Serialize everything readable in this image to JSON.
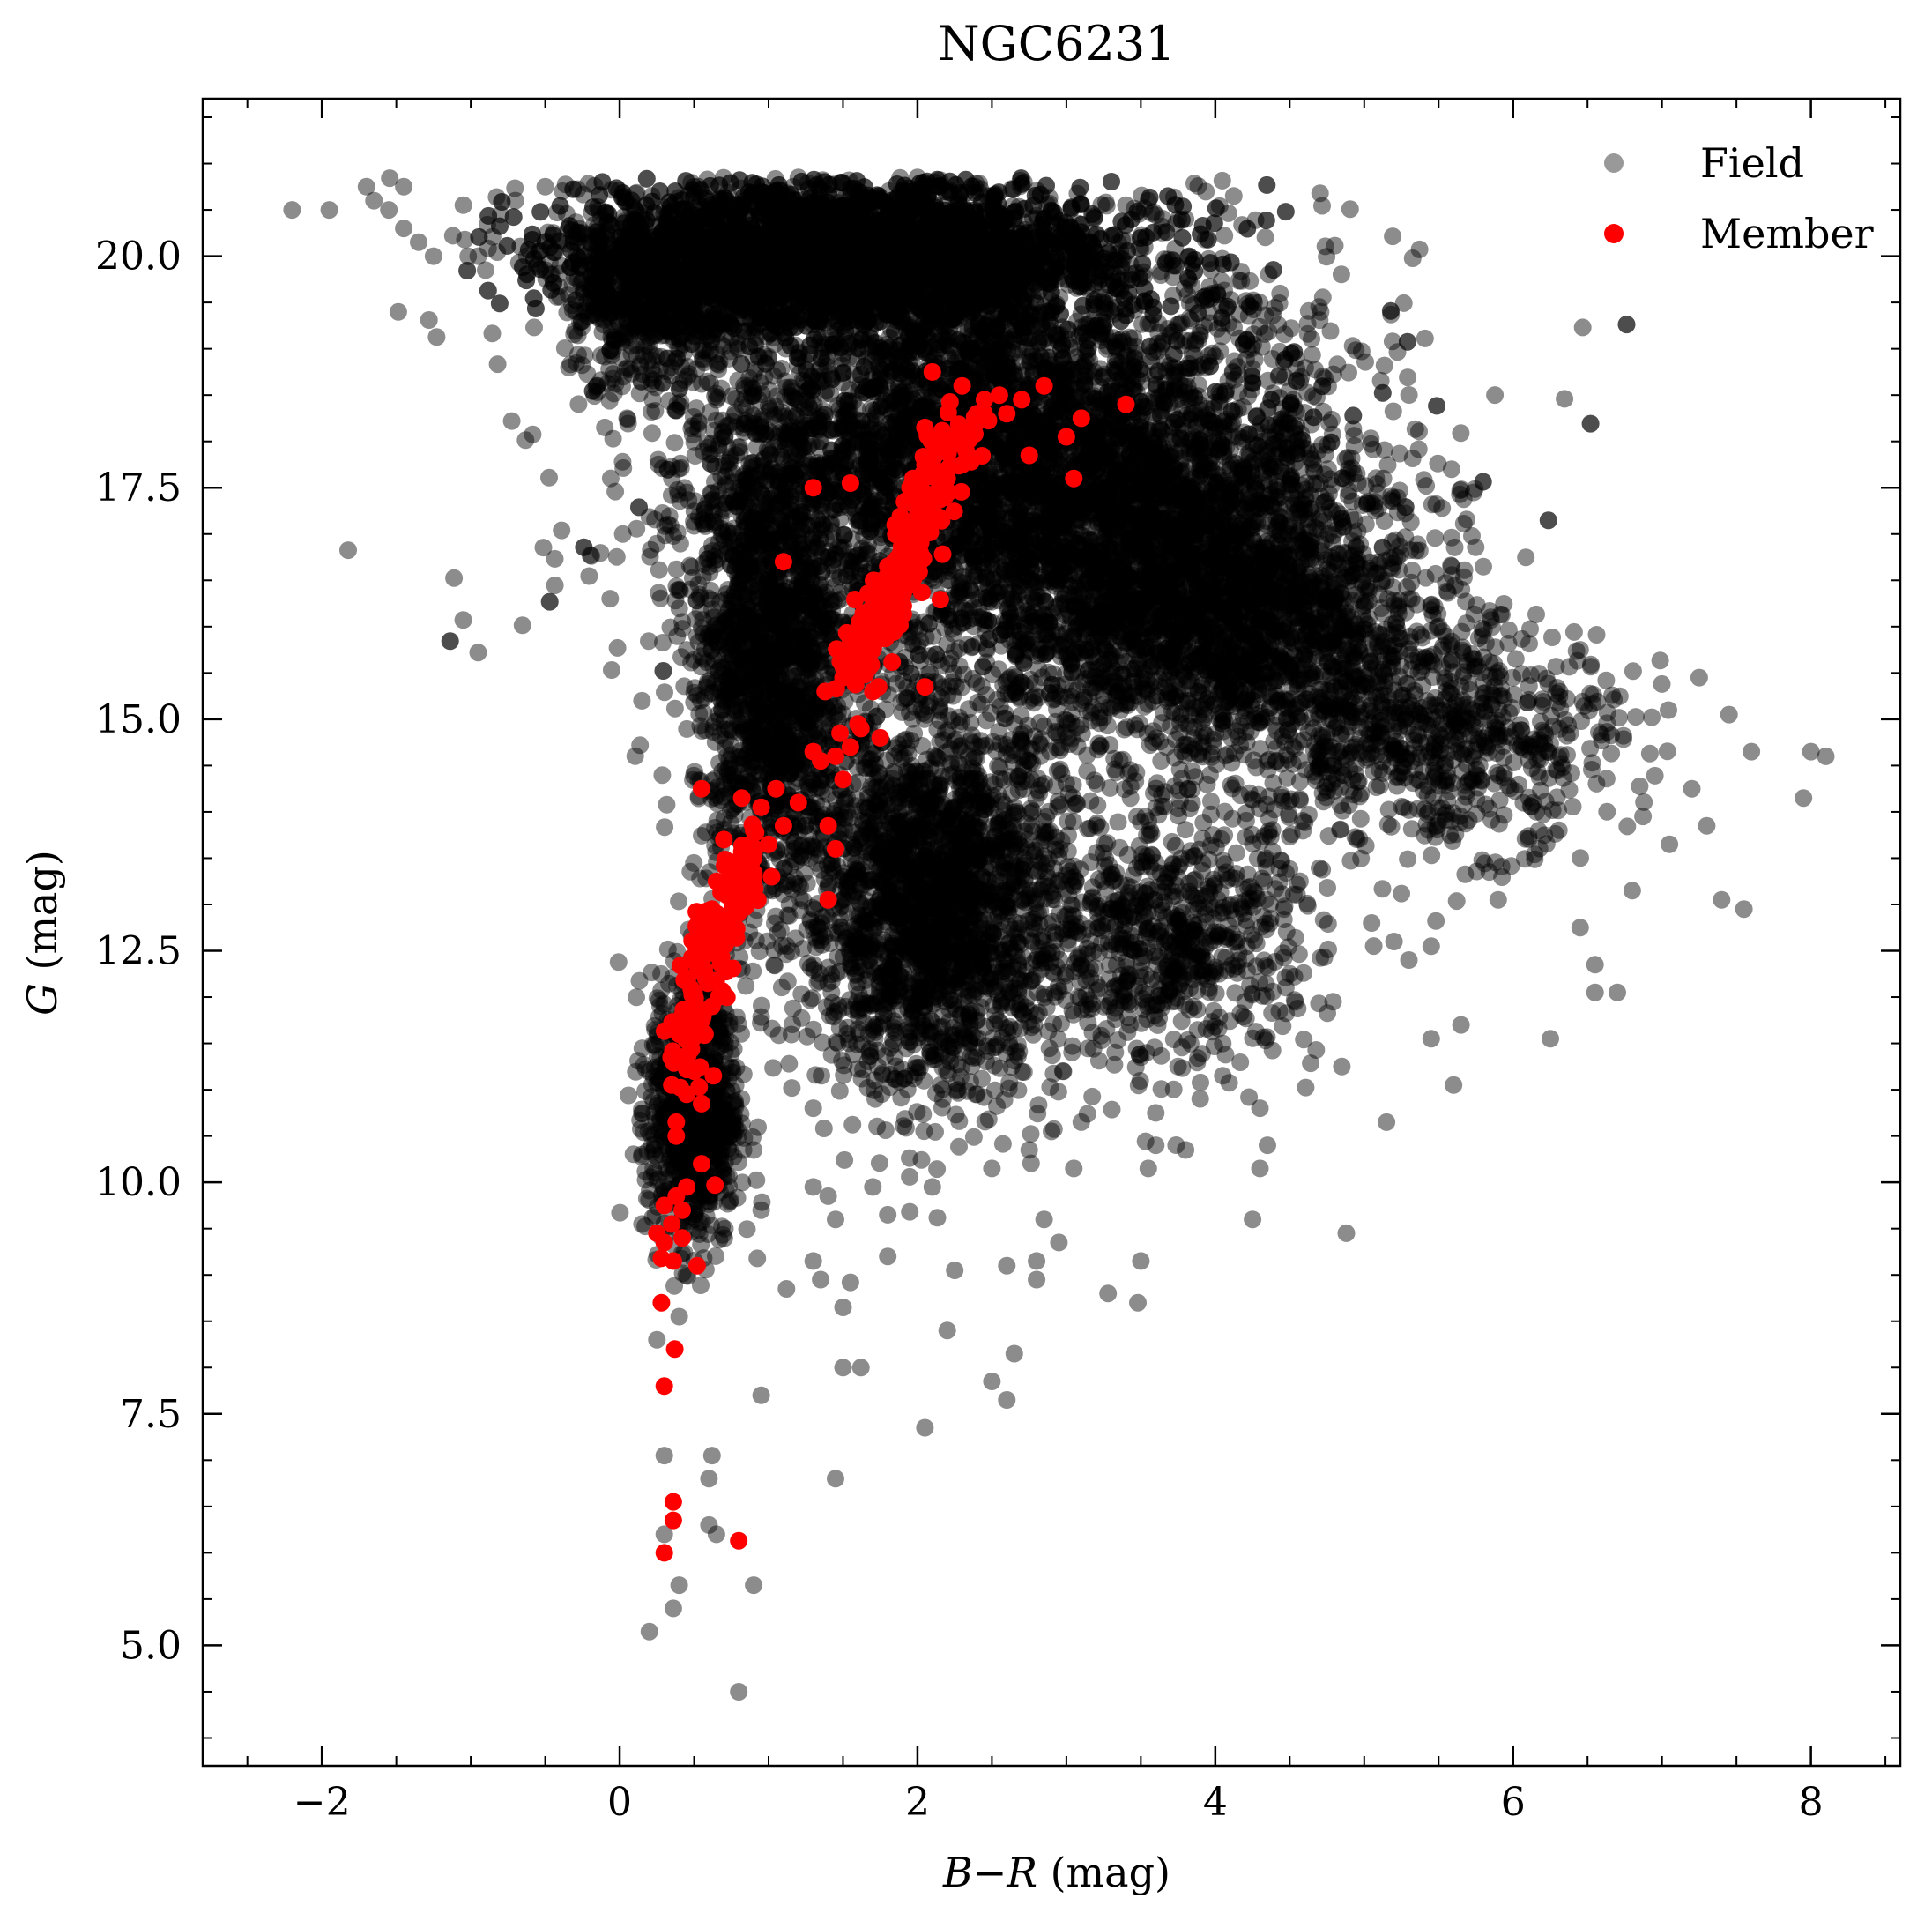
{
  "chart_data": {
    "type": "scatter",
    "title": "NGC6231",
    "xlabel": "B − R (mag)",
    "xlabel_parts": [
      "B",
      "−",
      "R",
      " (mag)"
    ],
    "ylabel": "G (mag)",
    "ylabel_parts": [
      "G",
      " (mag)"
    ],
    "xlim": [
      -2.8,
      8.6
    ],
    "ylim": [
      21.7,
      3.7
    ],
    "y_inverted": true,
    "x_ticks": [
      -2,
      0,
      2,
      4,
      6,
      8
    ],
    "x_tick_labels": [
      "−2",
      "0",
      "2",
      "4",
      "6",
      "8"
    ],
    "y_ticks": [
      5.0,
      7.5,
      10.0,
      12.5,
      15.0,
      17.5,
      20.0
    ],
    "y_tick_labels": [
      "5.0",
      "7.5",
      "10.0",
      "12.5",
      "15.0",
      "17.5",
      "20.0"
    ],
    "grid": false,
    "legend_position": "top-right",
    "series": [
      {
        "name": "Field",
        "color": "#555555",
        "alpha": 0.45,
        "points": [
          [
            0.8,
            4.5
          ],
          [
            0.2,
            5.15
          ],
          [
            0.36,
            5.4
          ],
          [
            0.4,
            5.65
          ],
          [
            0.9,
            5.65
          ],
          [
            0.3,
            6.2
          ],
          [
            0.65,
            6.2
          ],
          [
            0.6,
            6.3
          ],
          [
            0.6,
            6.8
          ],
          [
            0.62,
            7.05
          ],
          [
            0.3,
            7.05
          ],
          [
            1.45,
            6.8
          ],
          [
            2.05,
            7.35
          ],
          [
            0.95,
            7.7
          ],
          [
            2.6,
            7.65
          ],
          [
            2.5,
            7.85
          ],
          [
            1.5,
            8.0
          ],
          [
            1.62,
            8.0
          ],
          [
            2.65,
            8.15
          ],
          [
            0.25,
            8.3
          ],
          [
            2.2,
            8.4
          ],
          [
            0.4,
            8.55
          ],
          [
            1.5,
            8.65
          ],
          [
            1.12,
            8.85
          ],
          [
            1.55,
            8.92
          ],
          [
            1.35,
            8.95
          ],
          [
            2.8,
            8.95
          ],
          [
            3.28,
            8.8
          ],
          [
            3.48,
            8.7
          ],
          [
            2.8,
            9.15
          ],
          [
            1.3,
            9.15
          ],
          [
            3.5,
            9.15
          ],
          [
            2.25,
            9.05
          ],
          [
            2.6,
            9.1
          ],
          [
            1.8,
            9.2
          ],
          [
            2.95,
            9.35
          ],
          [
            0.15,
            9.55
          ],
          [
            1.45,
            9.6
          ],
          [
            1.8,
            9.65
          ],
          [
            2.85,
            9.6
          ],
          [
            4.88,
            9.45
          ],
          [
            4.25,
            9.6
          ],
          [
            0.95,
            9.7
          ],
          [
            1.4,
            9.85
          ],
          [
            2.1,
            9.95
          ],
          [
            1.7,
            9.95
          ],
          [
            1.3,
            9.95
          ],
          [
            2.5,
            10.15
          ],
          [
            3.55,
            10.15
          ],
          [
            3.05,
            10.15
          ],
          [
            4.3,
            10.15
          ],
          [
            0.15,
            10.3
          ],
          [
            0.9,
            10.35
          ],
          [
            2.75,
            10.35
          ],
          [
            3.8,
            10.35
          ],
          [
            3.6,
            10.4
          ],
          [
            4.35,
            10.4
          ],
          [
            2.9,
            10.55
          ],
          [
            5.15,
            10.65
          ],
          [
            3.1,
            10.65
          ],
          [
            3.6,
            10.75
          ],
          [
            4.3,
            10.8
          ],
          [
            1.3,
            10.8
          ],
          [
            2.4,
            10.95
          ],
          [
            4.05,
            11.15
          ],
          [
            3.75,
            11.25
          ],
          [
            4.85,
            11.25
          ],
          [
            5.6,
            11.05
          ],
          [
            3.5,
            11.35
          ],
          [
            4.05,
            11.5
          ],
          [
            5.45,
            11.55
          ],
          [
            6.25,
            11.55
          ],
          [
            4.2,
            11.95
          ],
          [
            5.65,
            11.7
          ],
          [
            6.7,
            12.05
          ],
          [
            6.55,
            12.05
          ],
          [
            4.5,
            12.25
          ],
          [
            5.3,
            12.4
          ],
          [
            5.45,
            12.55
          ],
          [
            5.2,
            12.6
          ],
          [
            6.55,
            12.35
          ],
          [
            5.05,
            12.8
          ],
          [
            6.45,
            12.75
          ],
          [
            5.9,
            13.05
          ],
          [
            6.8,
            13.15
          ],
          [
            7.4,
            13.05
          ],
          [
            7.55,
            12.95
          ],
          [
            7.05,
            13.65
          ],
          [
            7.3,
            13.85
          ],
          [
            7.95,
            14.15
          ],
          [
            7.2,
            14.25
          ],
          [
            7.6,
            14.65
          ],
          [
            8.0,
            14.65
          ],
          [
            8.1,
            14.6
          ],
          [
            7.45,
            15.05
          ],
          [
            7.25,
            15.45
          ],
          [
            6.45,
            15.75
          ],
          [
            5.85,
            16.1
          ],
          [
            5.3,
            16.3
          ],
          [
            4.9,
            16.5
          ],
          [
            0.15,
            15.2
          ],
          [
            0.45,
            15.75
          ],
          [
            0.85,
            16.35
          ],
          [
            0.6,
            16.65
          ],
          [
            0.45,
            17.45
          ],
          [
            0.35,
            17.6
          ],
          [
            -0.1,
            18.15
          ],
          [
            0.05,
            18.25
          ],
          [
            -0.2,
            19.65
          ],
          [
            -0.5,
            19.85
          ],
          [
            -0.9,
            19.85
          ],
          [
            -0.95,
            20.0
          ],
          [
            -1.25,
            20.0
          ],
          [
            -1.35,
            20.15
          ],
          [
            -1.45,
            20.3
          ],
          [
            -1.55,
            20.5
          ],
          [
            -1.65,
            20.6
          ],
          [
            -1.95,
            20.5
          ],
          [
            -2.2,
            20.5
          ],
          [
            -1.7,
            20.75
          ],
          [
            -1.45,
            20.75
          ],
          [
            -0.7,
            20.6
          ],
          [
            -0.5,
            20.75
          ],
          [
            -1.05,
            20.55
          ],
          [
            -0.8,
            20.45
          ],
          [
            3.4,
            20.55
          ],
          [
            3.55,
            20.6
          ],
          [
            3.8,
            20.4
          ],
          [
            3.1,
            19.85
          ],
          [
            2.95,
            20.25
          ],
          [
            1.2,
            20.85
          ],
          [
            2.0,
            20.85
          ]
        ],
        "dense_regions": [
          {
            "center": [
              2.6,
              17.8
            ],
            "spread": [
              2.2,
              2.3
            ],
            "count": 5200
          },
          {
            "center": [
              1.5,
              20.0
            ],
            "spread": [
              1.8,
              0.8
            ],
            "count": 4200
          },
          {
            "center": [
              4.0,
              16.2
            ],
            "spread": [
              1.4,
              1.8
            ],
            "count": 2400
          },
          {
            "center": [
              2.1,
              13.0
            ],
            "spread": [
              0.9,
              2.0
            ],
            "count": 2200
          },
          {
            "center": [
              0.5,
              10.8
            ],
            "spread": [
              0.3,
              1.5
            ],
            "count": 900
          },
          {
            "center": [
              1.0,
              15.5
            ],
            "spread": [
              0.5,
              2.5
            ],
            "count": 1500
          },
          {
            "center": [
              5.5,
              14.8
            ],
            "spread": [
              1.2,
              1.2
            ],
            "count": 700
          },
          {
            "center": [
              3.7,
              12.6
            ],
            "spread": [
              1.0,
              1.3
            ],
            "count": 700
          },
          {
            "center": [
              0.2,
              19.6
            ],
            "spread": [
              0.6,
              0.9
            ],
            "count": 600
          }
        ]
      },
      {
        "name": "Member",
        "color": "#ff0000",
        "alpha": 1.0,
        "points": [
          [
            0.3,
            6.0
          ],
          [
            0.8,
            6.13
          ],
          [
            0.36,
            6.35
          ],
          [
            0.36,
            6.55
          ],
          [
            0.3,
            7.8
          ],
          [
            0.37,
            8.2
          ],
          [
            0.28,
            8.7
          ],
          [
            0.52,
            9.1
          ],
          [
            0.36,
            9.15
          ],
          [
            0.28,
            9.18
          ],
          [
            0.3,
            9.35
          ],
          [
            0.42,
            9.4
          ],
          [
            0.25,
            9.45
          ],
          [
            0.35,
            9.55
          ],
          [
            0.42,
            9.7
          ],
          [
            0.3,
            9.75
          ],
          [
            0.38,
            9.85
          ],
          [
            0.45,
            9.95
          ],
          [
            0.64,
            9.97
          ],
          [
            0.55,
            10.2
          ],
          [
            0.38,
            10.5
          ],
          [
            0.38,
            10.65
          ],
          [
            0.55,
            10.85
          ],
          [
            0.45,
            10.95
          ],
          [
            0.35,
            11.05
          ],
          [
            0.5,
            11.2
          ],
          [
            0.42,
            11.3
          ],
          [
            0.48,
            11.45
          ],
          [
            0.4,
            11.6
          ],
          [
            0.55,
            11.75
          ],
          [
            0.45,
            11.85
          ],
          [
            0.62,
            11.9
          ],
          [
            0.5,
            12.05
          ],
          [
            0.58,
            12.2
          ],
          [
            0.52,
            12.35
          ],
          [
            0.65,
            12.5
          ],
          [
            0.55,
            12.62
          ],
          [
            0.6,
            12.75
          ],
          [
            0.7,
            12.85
          ],
          [
            0.62,
            12.95
          ],
          [
            0.72,
            13.1
          ],
          [
            0.8,
            13.15
          ],
          [
            0.65,
            13.25
          ],
          [
            0.9,
            13.25
          ],
          [
            0.75,
            13.4
          ],
          [
            1.02,
            13.3
          ],
          [
            0.85,
            13.55
          ],
          [
            1.0,
            13.65
          ],
          [
            0.7,
            13.7
          ],
          [
            0.9,
            13.8
          ],
          [
            1.1,
            13.85
          ],
          [
            1.2,
            14.1
          ],
          [
            0.95,
            14.05
          ],
          [
            1.05,
            14.25
          ],
          [
            0.82,
            14.15
          ],
          [
            0.55,
            14.25
          ],
          [
            1.4,
            13.85
          ],
          [
            1.45,
            13.6
          ],
          [
            1.4,
            13.05
          ],
          [
            1.35,
            14.55
          ],
          [
            1.45,
            14.6
          ],
          [
            1.5,
            14.35
          ],
          [
            1.55,
            14.7
          ],
          [
            1.48,
            14.85
          ],
          [
            1.62,
            14.9
          ],
          [
            1.38,
            15.3
          ],
          [
            1.5,
            15.45
          ],
          [
            1.6,
            15.55
          ],
          [
            1.55,
            15.8
          ],
          [
            1.65,
            15.75
          ],
          [
            1.7,
            15.9
          ],
          [
            1.75,
            16.05
          ],
          [
            1.65,
            16.15
          ],
          [
            1.8,
            16.25
          ],
          [
            1.72,
            16.4
          ],
          [
            1.85,
            16.5
          ],
          [
            1.8,
            16.65
          ],
          [
            1.95,
            16.45
          ],
          [
            1.9,
            16.8
          ],
          [
            1.95,
            16.95
          ],
          [
            2.05,
            17.0
          ],
          [
            1.85,
            17.1
          ],
          [
            2.0,
            17.2
          ],
          [
            2.1,
            17.25
          ],
          [
            2.15,
            17.45
          ],
          [
            1.95,
            17.5
          ],
          [
            2.2,
            17.6
          ],
          [
            2.05,
            17.75
          ],
          [
            2.3,
            17.75
          ],
          [
            2.15,
            17.9
          ],
          [
            2.25,
            18.05
          ],
          [
            2.35,
            18.15
          ],
          [
            2.05,
            18.15
          ],
          [
            2.4,
            18.3
          ],
          [
            2.45,
            18.45
          ],
          [
            2.55,
            18.5
          ],
          [
            2.6,
            18.3
          ],
          [
            2.7,
            18.45
          ],
          [
            2.3,
            18.6
          ],
          [
            2.85,
            18.6
          ],
          [
            2.1,
            18.75
          ],
          [
            3.0,
            18.05
          ],
          [
            3.05,
            17.6
          ],
          [
            3.1,
            18.25
          ],
          [
            2.75,
            17.85
          ],
          [
            3.4,
            18.4
          ],
          [
            1.3,
            17.5
          ],
          [
            1.55,
            17.55
          ],
          [
            1.1,
            16.7
          ],
          [
            2.05,
            15.35
          ],
          [
            1.7,
            15.3
          ],
          [
            1.75,
            14.8
          ],
          [
            1.6,
            14.95
          ],
          [
            1.3,
            14.65
          ]
        ],
        "dense_regions": [
          {
            "path": [
              [
                0.42,
                11.2
              ],
              [
                0.6,
                12.6
              ],
              [
                0.9,
                13.6
              ]
            ],
            "spread": [
              0.12,
              0.25
            ],
            "count": 140
          },
          {
            "path": [
              [
                1.55,
                15.4
              ],
              [
                1.9,
                16.6
              ],
              [
                2.3,
                18.2
              ]
            ],
            "spread": [
              0.14,
              0.25
            ],
            "count": 200
          }
        ]
      }
    ]
  }
}
